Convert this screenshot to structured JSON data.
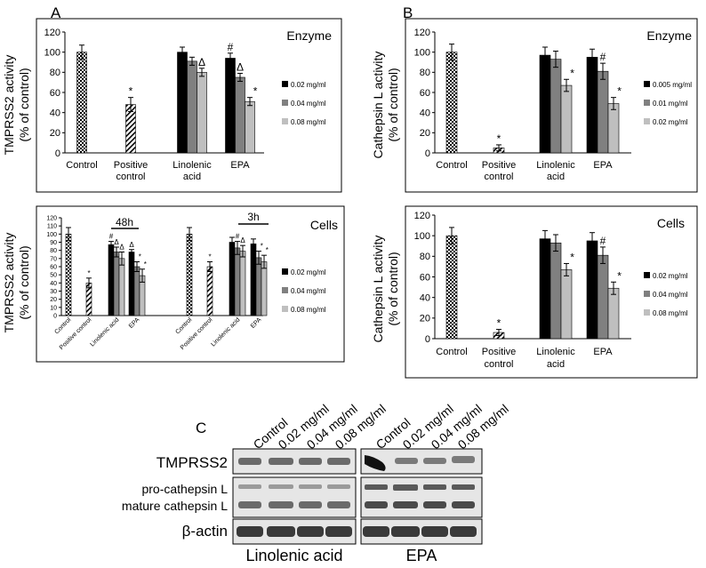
{
  "panel_labels": {
    "A": "A",
    "B": "B",
    "C": "C"
  },
  "colors": {
    "black_bar": "#000000",
    "gray_bar": "#808080",
    "light_bar": "#bfbfbf",
    "blot_bg": "#e6e6e6",
    "band": "#5a5a5a"
  },
  "chart_data": [
    {
      "id": "a_enzyme",
      "type": "bar",
      "title": "Enzyme",
      "ylabel": [
        "TMPRSS2 activity",
        "(% of control)"
      ],
      "ylim": [
        0,
        120
      ],
      "yticks": [
        0,
        20,
        40,
        60,
        80,
        100,
        120
      ],
      "groups": [
        {
          "label": [
            "Control"
          ],
          "bars": [
            {
              "fill": "check",
              "value": 100,
              "err": 7,
              "mark": ""
            }
          ]
        },
        {
          "label": [
            "Positive",
            "control"
          ],
          "bars": [
            {
              "fill": "hatch",
              "value": 48,
              "err": 7,
              "mark": "*"
            }
          ]
        },
        {
          "label": [
            "Linolenic",
            "acid"
          ],
          "bars": [
            {
              "fill": "black",
              "value": 100,
              "err": 5,
              "mark": ""
            },
            {
              "fill": "gray",
              "value": 91,
              "err": 4,
              "mark": ""
            },
            {
              "fill": "light",
              "value": 80,
              "err": 4,
              "mark": "Δ"
            }
          ]
        },
        {
          "label": [
            "EPA"
          ],
          "bars": [
            {
              "fill": "black",
              "value": 94,
              "err": 5,
              "mark": "#"
            },
            {
              "fill": "gray",
              "value": 75,
              "err": 4,
              "mark": "Δ"
            },
            {
              "fill": "light",
              "value": 51,
              "err": 4,
              "mark": "*"
            }
          ]
        }
      ],
      "legend": [
        "0.02 mg/ml",
        "0.04 mg/ml",
        "0.08 mg/ml"
      ]
    },
    {
      "id": "b_enzyme",
      "type": "bar",
      "title": "Enzyme",
      "ylabel": [
        "Cathepsin L activity",
        "(% of control)"
      ],
      "ylim": [
        0,
        120
      ],
      "yticks": [
        0,
        20,
        40,
        60,
        80,
        100,
        120
      ],
      "groups": [
        {
          "label": [
            "Control"
          ],
          "bars": [
            {
              "fill": "check",
              "value": 100,
              "err": 8,
              "mark": ""
            }
          ]
        },
        {
          "label": [
            "Positive",
            "control"
          ],
          "bars": [
            {
              "fill": "hatch",
              "value": 5,
              "err": 3,
              "mark": "*"
            }
          ]
        },
        {
          "label": [
            "Linolenic",
            "acid"
          ],
          "bars": [
            {
              "fill": "black",
              "value": 97,
              "err": 8,
              "mark": ""
            },
            {
              "fill": "gray",
              "value": 93,
              "err": 8,
              "mark": ""
            },
            {
              "fill": "light",
              "value": 67,
              "err": 6,
              "mark": "*"
            }
          ]
        },
        {
          "label": [
            "EPA"
          ],
          "bars": [
            {
              "fill": "black",
              "value": 95,
              "err": 8,
              "mark": ""
            },
            {
              "fill": "gray",
              "value": 81,
              "err": 8,
              "mark": "#"
            },
            {
              "fill": "light",
              "value": 49,
              "err": 6,
              "mark": "*"
            }
          ]
        }
      ],
      "legend": [
        "0.005 mg/ml",
        "0.01 mg/ml",
        "0.02 mg/ml"
      ]
    },
    {
      "id": "a_cells",
      "type": "bar",
      "title": "Cells",
      "ylabel": [
        "TMPRSS2 activity",
        "(% of control)"
      ],
      "ylim": [
        0,
        120
      ],
      "yticks": [
        0,
        10,
        20,
        30,
        40,
        50,
        60,
        70,
        80,
        90,
        100,
        110,
        120
      ],
      "time_labels": [
        "48h",
        "3h"
      ],
      "groups": [
        {
          "label": [
            "Control"
          ],
          "bars": [
            {
              "fill": "check",
              "value": 100,
              "err": 8,
              "mark": ""
            }
          ]
        },
        {
          "label": [
            "Positive control"
          ],
          "bars": [
            {
              "fill": "hatch",
              "value": 40,
              "err": 6,
              "mark": "*"
            }
          ]
        },
        {
          "label": [
            "Linolenic acid"
          ],
          "bars": [
            {
              "fill": "black",
              "value": 87,
              "err": 4,
              "mark": "#"
            },
            {
              "fill": "gray",
              "value": 78,
              "err": 6,
              "mark": "Δ"
            },
            {
              "fill": "light",
              "value": 70,
              "err": 8,
              "mark": "Δ"
            }
          ]
        },
        {
          "label": [
            "EPA"
          ],
          "bars": [
            {
              "fill": "black",
              "value": 78,
              "err": 3,
              "mark": "Δ"
            },
            {
              "fill": "gray",
              "value": 60,
              "err": 6,
              "mark": "*"
            },
            {
              "fill": "light",
              "value": 49,
              "err": 8,
              "mark": "*"
            }
          ]
        },
        {
          "label": [
            "Control"
          ],
          "bars": [
            {
              "fill": "check",
              "value": 100,
              "err": 8,
              "mark": ""
            }
          ]
        },
        {
          "label": [
            "Positive control"
          ],
          "bars": [
            {
              "fill": "hatch",
              "value": 60,
              "err": 6,
              "mark": "*"
            }
          ]
        },
        {
          "label": [
            "Linolenic acid"
          ],
          "bars": [
            {
              "fill": "black",
              "value": 90,
              "err": 6,
              "mark": ""
            },
            {
              "fill": "gray",
              "value": 83,
              "err": 8,
              "mark": "#"
            },
            {
              "fill": "light",
              "value": 79,
              "err": 7,
              "mark": "Δ"
            }
          ]
        },
        {
          "label": [
            "EPA"
          ],
          "bars": [
            {
              "fill": "black",
              "value": 88,
              "err": 6,
              "mark": ""
            },
            {
              "fill": "gray",
              "value": 71,
              "err": 8,
              "mark": "*"
            },
            {
              "fill": "light",
              "value": 66,
              "err": 8,
              "mark": "*"
            }
          ]
        }
      ],
      "legend": [
        "0.02 mg/ml",
        "0.04 mg/ml",
        "0.08 mg/ml"
      ]
    },
    {
      "id": "b_cells",
      "type": "bar",
      "title": "Cells",
      "ylabel": [
        "Cathepsin L activity",
        "(% of control)"
      ],
      "ylim": [
        0,
        120
      ],
      "yticks": [
        0,
        20,
        40,
        60,
        80,
        100,
        120
      ],
      "groups": [
        {
          "label": [
            "Control"
          ],
          "bars": [
            {
              "fill": "check",
              "value": 100,
              "err": 8,
              "mark": ""
            }
          ]
        },
        {
          "label": [
            "Positive",
            "control"
          ],
          "bars": [
            {
              "fill": "hatch",
              "value": 6,
              "err": 3,
              "mark": "*"
            }
          ]
        },
        {
          "label": [
            "Linolenic",
            "acid"
          ],
          "bars": [
            {
              "fill": "black",
              "value": 97,
              "err": 8,
              "mark": ""
            },
            {
              "fill": "gray",
              "value": 93,
              "err": 8,
              "mark": ""
            },
            {
              "fill": "light",
              "value": 67,
              "err": 6,
              "mark": "*"
            }
          ]
        },
        {
          "label": [
            "EPA"
          ],
          "bars": [
            {
              "fill": "black",
              "value": 95,
              "err": 8,
              "mark": ""
            },
            {
              "fill": "gray",
              "value": 81,
              "err": 8,
              "mark": "#"
            },
            {
              "fill": "light",
              "value": 49,
              "err": 6,
              "mark": "*"
            }
          ]
        }
      ],
      "legend": [
        "0.02 mg/ml",
        "0.04 mg/ml",
        "0.08 mg/ml"
      ]
    }
  ],
  "blot": {
    "lane_labels": [
      "Control",
      "0.02 mg/ml",
      "0.04 mg/ml",
      "0.08 mg/ml",
      "Control",
      "0.02 mg/ml",
      "0.04 mg/ml",
      "0.08 mg/ml"
    ],
    "row_labels": [
      "TMPRSS2",
      "pro-cathepsin L",
      "mature cathepsin L",
      "β-actin"
    ],
    "group_labels": [
      "Linolenic acid",
      "EPA"
    ]
  }
}
